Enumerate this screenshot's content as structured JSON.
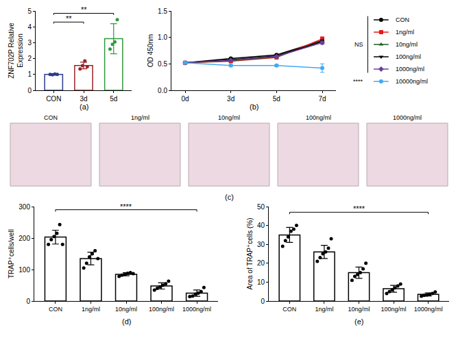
{
  "chart_data": [
    {
      "type": "bar",
      "label": "(a)",
      "y_label": "ZNF702P Relative Expression",
      "categories": [
        "CON",
        "3d",
        "5d"
      ],
      "values": [
        1.0,
        1.56,
        3.25
      ],
      "errors": [
        0.02,
        0.21,
        0.95
      ],
      "points": [
        [
          1.0,
          0.98,
          1.02,
          1.0
        ],
        [
          1.35,
          1.55,
          1.85,
          1.49
        ],
        [
          2.6,
          2.9,
          3.05,
          4.45
        ]
      ],
      "colors": [
        "#2b3a8c",
        "#9b2226",
        "#2e9a3a"
      ],
      "ylim": [
        0,
        5
      ],
      "yticks": [
        0,
        1,
        2,
        3,
        4,
        5
      ],
      "grid": false,
      "comparisons": [
        {
          "from": "CON",
          "to": "3d",
          "y": 4.3,
          "label": "**"
        },
        {
          "from": "CON",
          "to": "5d",
          "y": 4.85,
          "label": "**"
        }
      ]
    },
    {
      "type": "line",
      "label": "(b)",
      "y_label": "OD 450nm",
      "categories": [
        "0d",
        "3d",
        "5d",
        "7d"
      ],
      "ylim": [
        0,
        1.5
      ],
      "yticks": [
        {
          "value": 0,
          "label": "0.0"
        },
        {
          "value": 0.5,
          "label": "0.5"
        },
        {
          "value": 1,
          "label": "1.0"
        },
        {
          "value": 1.5,
          "label": "1.5"
        }
      ],
      "grid": false,
      "legend": "right",
      "series": [
        {
          "name": "CON",
          "color": "#000000",
          "marker": "circle",
          "values": [
            0.52,
            0.6,
            0.67,
            0.94
          ],
          "errors": [
            0.01,
            0.01,
            0.01,
            0.03
          ]
        },
        {
          "name": "1ng/ml",
          "color": "#e31a1c",
          "marker": "square",
          "values": [
            0.52,
            0.55,
            0.62,
            0.97
          ],
          "errors": [
            0.01,
            0.01,
            0.01,
            0.04
          ]
        },
        {
          "name": "10ng/ml",
          "color": "#1b5e20",
          "marker": "triangle-up",
          "values": [
            0.52,
            0.56,
            0.63,
            0.93
          ],
          "errors": [
            0.01,
            0.01,
            0.01,
            0.03
          ]
        },
        {
          "name": "100ng/ml",
          "color": "#000000",
          "marker": "triangle-down",
          "values": [
            0.52,
            0.58,
            0.65,
            0.92
          ],
          "errors": [
            0.01,
            0.01,
            0.01,
            0.03
          ]
        },
        {
          "name": "1000ng/ml",
          "color": "#6a3d9a",
          "marker": "diamond",
          "values": [
            0.52,
            0.57,
            0.64,
            0.9
          ],
          "errors": [
            0.01,
            0.01,
            0.01,
            0.03
          ]
        },
        {
          "name": "10000ng/ml",
          "color": "#3fa9f5",
          "marker": "circle",
          "values": [
            0.52,
            0.47,
            0.47,
            0.42
          ],
          "errors": [
            0.01,
            0.02,
            0.02,
            0.08
          ]
        }
      ],
      "groups": [
        {
          "members": [
            "CON",
            "1ng/ml",
            "10ng/ml",
            "100ng/ml",
            "1000ng/ml"
          ],
          "label": "NS"
        },
        {
          "members": [
            "10000ng/ml"
          ],
          "label": "****"
        }
      ]
    },
    {
      "type": "image",
      "label": "(c)",
      "images": [
        "CON",
        "1ng/ml",
        "10ng/ml",
        "100ng/ml",
        "1000ng/ml"
      ]
    },
    {
      "type": "bar",
      "label": "(d)",
      "y_label": "TRAP⁺cells/well",
      "categories": [
        "CON",
        "1ng/ml",
        "10ng/ml",
        "100ng/ml",
        "1000ng/ml"
      ],
      "values": [
        203,
        135,
        85,
        48,
        25
      ],
      "errors": [
        22,
        20,
        5,
        10,
        10
      ],
      "points": [
        [
          180,
          195,
          205,
          215,
          243,
          180
        ],
        [
          105,
          120,
          140,
          150,
          160,
          135
        ],
        [
          78,
          82,
          85,
          88,
          90,
          87
        ],
        [
          35,
          40,
          45,
          50,
          55,
          63
        ],
        [
          14,
          16,
          22,
          25,
          30,
          43
        ]
      ],
      "color": "#000000",
      "ylim": [
        0,
        300
      ],
      "yticks": [
        0,
        100,
        200,
        300
      ],
      "grid": false,
      "comparisons": [
        {
          "from": "CON",
          "to": "1000ng/ml",
          "y": 290,
          "label": "****"
        }
      ]
    },
    {
      "type": "bar",
      "label": "(e)",
      "y_label": "Area of TRAP⁺cells (%)",
      "categories": [
        "CON",
        "1ng/ml",
        "10ng/ml",
        "100ng/ml",
        "1000ng/ml"
      ],
      "values": [
        35,
        26,
        15,
        6.5,
        3.5
      ],
      "errors": [
        4,
        3.5,
        3,
        1.8,
        0.8
      ],
      "points": [
        [
          29,
          32,
          34,
          37,
          38,
          40
        ],
        [
          21,
          23,
          25,
          26,
          28,
          33
        ],
        [
          11,
          13,
          14,
          15,
          17,
          20
        ],
        [
          4,
          5,
          6,
          7,
          8,
          9
        ],
        [
          2.5,
          3,
          3.2,
          3.5,
          4,
          4.8
        ]
      ],
      "color": "#000000",
      "ylim": [
        0,
        50
      ],
      "yticks": [
        0,
        10,
        20,
        30,
        40,
        50
      ],
      "grid": false,
      "comparisons": [
        {
          "from": "CON",
          "to": "1000ng/ml",
          "y": 47,
          "label": "****"
        }
      ]
    }
  ]
}
